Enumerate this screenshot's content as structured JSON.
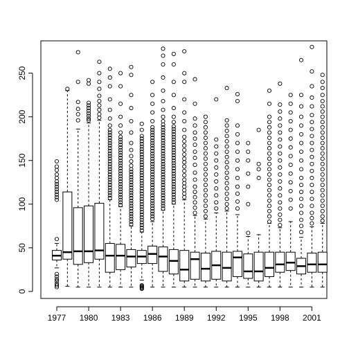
{
  "chart_data": {
    "type": "boxplot",
    "title": "",
    "xlabel": "",
    "ylabel": "",
    "ylim": [
      -8,
      287
    ],
    "yticks": [
      0,
      50,
      100,
      150,
      200,
      250
    ],
    "ytick_labels": [
      "0",
      "50",
      "100",
      "150",
      "200",
      "250"
    ],
    "xtick_labels": [
      "1977",
      "1980",
      "1983",
      "1986",
      "1989",
      "1992",
      "1995",
      "1998",
      "2001"
    ],
    "xtick_years": [
      1977,
      1980,
      1983,
      1986,
      1989,
      1992,
      1995,
      1998,
      2001
    ],
    "grid": false,
    "legend": "none",
    "stroke_color": "#000000",
    "box_fill": "#ffffff",
    "boxes": [
      {
        "year": 1977,
        "q1": 36,
        "median": 41,
        "q3": 47,
        "whisker_low": 27,
        "whisker_high": 55,
        "outliers": [
          5,
          7,
          9,
          12,
          14,
          17,
          20,
          60,
          105,
          108,
          111,
          114,
          117,
          120,
          123,
          126,
          130,
          134,
          139,
          143,
          149
        ]
      },
      {
        "year": 1978,
        "q1": 37,
        "median": 45,
        "q3": 114,
        "whisker_low": 6,
        "whisker_high": 230,
        "outliers": [
          232
        ]
      },
      {
        "year": 1979,
        "q1": 31,
        "median": 46,
        "q3": 96,
        "whisker_low": 5,
        "whisker_high": 186,
        "outliers": [
          196,
          203,
          209,
          217,
          240,
          274
        ]
      },
      {
        "year": 1980,
        "q1": 33,
        "median": 46,
        "q3": 98,
        "whisker_low": 5,
        "whisker_high": 193,
        "outliers": [
          196,
          198,
          201,
          204,
          207,
          210,
          213,
          216,
          238,
          242
        ]
      },
      {
        "year": 1981,
        "q1": 37,
        "median": 47,
        "q3": 101,
        "whisker_low": 5,
        "whisker_high": 196,
        "outliers": [
          199,
          203,
          208,
          213,
          218,
          224,
          232,
          240,
          250,
          263
        ]
      },
      {
        "year": 1982,
        "q1": 22,
        "median": 41,
        "q3": 55,
        "whisker_low": 5,
        "whisker_high": 105,
        "outliers": [
          107,
          110,
          113,
          116,
          119,
          122,
          125,
          128,
          131,
          134,
          137,
          140,
          143,
          146,
          149,
          152,
          155,
          158,
          161,
          164,
          167,
          170,
          173,
          176,
          179,
          182,
          185,
          190,
          198,
          208,
          220,
          235,
          245,
          255
        ]
      },
      {
        "year": 1983,
        "q1": 25,
        "median": 41,
        "q3": 54,
        "whisker_low": 5,
        "whisker_high": 97,
        "outliers": [
          99,
          102,
          105,
          108,
          111,
          114,
          117,
          120,
          123,
          126,
          129,
          132,
          135,
          138,
          141,
          144,
          147,
          150,
          153,
          156,
          159,
          162,
          165,
          168,
          171,
          174,
          177,
          182,
          190,
          200,
          215,
          235,
          250
        ]
      },
      {
        "year": 1984,
        "q1": 28,
        "median": 40,
        "q3": 48,
        "whisker_low": 5,
        "whisker_high": 75,
        "outliers": [
          77,
          80,
          83,
          86,
          89,
          92,
          95,
          98,
          101,
          104,
          107,
          110,
          113,
          116,
          119,
          122,
          125,
          128,
          131,
          134,
          137,
          140,
          144,
          149,
          155,
          162,
          170,
          182,
          195,
          210,
          225,
          248,
          257
        ]
      },
      {
        "year": 1985,
        "q1": 32,
        "median": 40,
        "q3": 47,
        "whisker_low": 13,
        "whisker_high": 68,
        "outliers": [
          3,
          4,
          5,
          6,
          7,
          70,
          73,
          76,
          79,
          82,
          85,
          88,
          91,
          94,
          97,
          100,
          103,
          106,
          109,
          112,
          115,
          118,
          121,
          124,
          127,
          130,
          133,
          136,
          139,
          142,
          145,
          148,
          151,
          154,
          157,
          160,
          163,
          166,
          169,
          172,
          175,
          178,
          185,
          192
        ]
      },
      {
        "year": 1986,
        "q1": 32,
        "median": 43,
        "q3": 52,
        "whisker_low": 5,
        "whisker_high": 80,
        "outliers": [
          83,
          86,
          89,
          92,
          95,
          98,
          101,
          104,
          107,
          110,
          113,
          116,
          119,
          122,
          125,
          128,
          131,
          134,
          137,
          140,
          143,
          146,
          149,
          152,
          155,
          158,
          161,
          164,
          167,
          170,
          173,
          176,
          179,
          182,
          185,
          188,
          195,
          205,
          215,
          225,
          240
        ]
      },
      {
        "year": 1987,
        "q1": 23,
        "median": 40,
        "q3": 51,
        "whisker_low": 5,
        "whisker_high": 93,
        "outliers": [
          95,
          98,
          101,
          104,
          107,
          110,
          113,
          116,
          119,
          122,
          125,
          128,
          131,
          134,
          137,
          140,
          143,
          146,
          149,
          152,
          155,
          158,
          161,
          164,
          167,
          170,
          173,
          176,
          179,
          182,
          185,
          188,
          191,
          195,
          200,
          208,
          218,
          230,
          245,
          260,
          270,
          278
        ]
      },
      {
        "year": 1988,
        "q1": 20,
        "median": 35,
        "q3": 48,
        "whisker_low": 5,
        "whisker_high": 100,
        "outliers": [
          102,
          105,
          108,
          111,
          114,
          117,
          120,
          123,
          126,
          129,
          132,
          135,
          138,
          141,
          144,
          147,
          150,
          153,
          156,
          159,
          162,
          165,
          168,
          171,
          174,
          177,
          180,
          183,
          186,
          189,
          194,
          200,
          210,
          225,
          240,
          260,
          272
        ]
      },
      {
        "year": 1989,
        "q1": 12,
        "median": 25,
        "q3": 47,
        "whisker_low": 5,
        "whisker_high": 105,
        "outliers": [
          108,
          112,
          116,
          120,
          124,
          128,
          133,
          138,
          143,
          148,
          152,
          157,
          162,
          167,
          172,
          177,
          185,
          195,
          205,
          220,
          240,
          250,
          275
        ]
      },
      {
        "year": 1990,
        "q1": 14,
        "median": 37,
        "q3": 45,
        "whisker_low": 5,
        "whisker_high": 87,
        "outliers": [
          90,
          96,
          102,
          108,
          114,
          120,
          128,
          136,
          145,
          153,
          160,
          168,
          175,
          182,
          190,
          198,
          215,
          243
        ]
      },
      {
        "year": 1991,
        "q1": 12,
        "median": 26,
        "q3": 44,
        "whisker_low": 5,
        "whisker_high": 83,
        "outliers": [
          86,
          92,
          98,
          104,
          110,
          116,
          122,
          128,
          134,
          140,
          146,
          152,
          158,
          164,
          170,
          176,
          182,
          188,
          194,
          200
        ]
      },
      {
        "year": 1992,
        "q1": 14,
        "median": 30,
        "q3": 46,
        "whisker_low": 5,
        "whisker_high": 90,
        "outliers": [
          95,
          102,
          110,
          118,
          126,
          134,
          142,
          150,
          158,
          166,
          174,
          220
        ]
      },
      {
        "year": 1993,
        "q1": 12,
        "median": 27,
        "q3": 45,
        "whisker_low": 5,
        "whisker_high": 92,
        "outliers": [
          95,
          100,
          106,
          112,
          118,
          124,
          130,
          136,
          142,
          148,
          154,
          160,
          166,
          172,
          178,
          184,
          190,
          196,
          233
        ]
      },
      {
        "year": 1994,
        "q1": 17,
        "median": 39,
        "q3": 46,
        "whisker_low": 5,
        "whisker_high": 88,
        "outliers": [
          95,
          103,
          112,
          120,
          130,
          140,
          150,
          160,
          170,
          180,
          190,
          218,
          226
        ]
      },
      {
        "year": 1995,
        "q1": 15,
        "median": 23,
        "q3": 43,
        "whisker_low": 5,
        "whisker_high": 63,
        "outliers": [
          67,
          100,
          120,
          135,
          150,
          160,
          170
        ]
      },
      {
        "year": 1996,
        "q1": 12,
        "median": 23,
        "q3": 45,
        "whisker_low": 5,
        "whisker_high": 65,
        "outliers": [
          130,
          140,
          146,
          185
        ]
      },
      {
        "year": 1997,
        "q1": 17,
        "median": 27,
        "q3": 45,
        "whisker_low": 5,
        "whisker_high": 78,
        "outliers": [
          80,
          86,
          92,
          98,
          104,
          110,
          116,
          122,
          128,
          134,
          140,
          146,
          152,
          158,
          164,
          170,
          176,
          182,
          188,
          194,
          200,
          215,
          230
        ]
      },
      {
        "year": 1998,
        "q1": 22,
        "median": 31,
        "q3": 45,
        "whisker_low": 5,
        "whisker_high": 73,
        "outliers": [
          76,
          82,
          88,
          95,
          102,
          110,
          118,
          126,
          134,
          142,
          150,
          158,
          166,
          174,
          182,
          190,
          198,
          206,
          214,
          238
        ]
      },
      {
        "year": 1999,
        "q1": 24,
        "median": 33,
        "q3": 45,
        "whisker_low": 5,
        "whisker_high": 80,
        "outliers": [
          95,
          105,
          115,
          125,
          135,
          145,
          155,
          165,
          175,
          185,
          195,
          205,
          215,
          225
        ]
      },
      {
        "year": 2000,
        "q1": 20,
        "median": 29,
        "q3": 38,
        "whisker_low": 5,
        "whisker_high": 62,
        "outliers": [
          68,
          75,
          82,
          90,
          98,
          106,
          114,
          122,
          130,
          140,
          150,
          160,
          170,
          180,
          190,
          200,
          212,
          225,
          265
        ]
      },
      {
        "year": 2001,
        "q1": 22,
        "median": 31,
        "q3": 44,
        "whisker_low": 5,
        "whisker_high": 74,
        "outliers": [
          78,
          84,
          90,
          98,
          106,
          114,
          122,
          130,
          138,
          146,
          154,
          162,
          170,
          178,
          186,
          194,
          202,
          212,
          222,
          235,
          252,
          280
        ]
      },
      {
        "year": 2002,
        "q1": 22,
        "median": 31,
        "q3": 45,
        "whisker_low": 5,
        "whisker_high": 78,
        "outliers": [
          81,
          86,
          92,
          98,
          104,
          110,
          116,
          122,
          128,
          134,
          140,
          146,
          152,
          158,
          164,
          170,
          176,
          182,
          188,
          194,
          200,
          206,
          212,
          218,
          225,
          233,
          240,
          248
        ]
      }
    ]
  }
}
